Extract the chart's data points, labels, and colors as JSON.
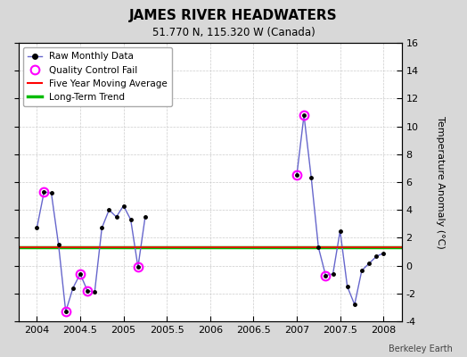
{
  "title": "JAMES RIVER HEADWATERS",
  "subtitle": "51.770 N, 115.320 W (Canada)",
  "ylabel_right": "Temperature Anomaly (°C)",
  "watermark": "Berkeley Earth",
  "background_color": "#d8d8d8",
  "plot_bg_color": "#ffffff",
  "xlim": [
    2003.79,
    2008.21
  ],
  "ylim": [
    -4,
    16
  ],
  "yticks": [
    -4,
    -2,
    0,
    2,
    4,
    6,
    8,
    10,
    12,
    14,
    16
  ],
  "xticks": [
    2004,
    2004.5,
    2005,
    2005.5,
    2006,
    2006.5,
    2007,
    2007.5,
    2008
  ],
  "xtick_labels": [
    "2004",
    "2004.5",
    "2005",
    "2005.5",
    "2006",
    "2006.5",
    "2007",
    "2007.5",
    "2008"
  ],
  "long_term_trend_y": 1.3,
  "five_year_avg_y": 1.3,
  "raw_data_segments": [
    {
      "x": [
        2004.0,
        2004.083,
        2004.167,
        2004.25,
        2004.333,
        2004.417,
        2004.5,
        2004.583,
        2004.667,
        2004.75,
        2004.833,
        2004.917,
        2005.0,
        2005.083,
        2005.167,
        2005.25
      ],
      "y": [
        2.7,
        5.3,
        5.2,
        1.5,
        -3.3,
        -1.6,
        -0.6,
        -1.8,
        -1.9,
        2.7,
        4.0,
        3.5,
        4.3,
        3.3,
        -0.1,
        3.5
      ]
    },
    {
      "x": [
        2007.0,
        2007.083,
        2007.167,
        2007.25,
        2007.333,
        2007.417,
        2007.5,
        2007.583,
        2007.667,
        2007.75,
        2007.833,
        2007.917,
        2008.0
      ],
      "y": [
        6.5,
        10.8,
        6.3,
        1.3,
        -0.7,
        -0.6,
        2.5,
        -1.5,
        -2.8,
        -0.35,
        0.15,
        0.65,
        0.9
      ]
    }
  ],
  "qc_fail_points": {
    "x": [
      2004.083,
      2004.333,
      2004.5,
      2004.583,
      2005.167,
      2007.0,
      2007.083,
      2007.333
    ],
    "y": [
      5.3,
      -3.3,
      -0.6,
      -1.8,
      -0.1,
      6.5,
      10.8,
      -0.7
    ]
  },
  "line_color": "#6666cc",
  "marker_color": "#000000",
  "qc_color": "#ff00ff",
  "five_year_color": "#ff0000",
  "trend_color": "#00bb00",
  "grid_color": "#cccccc",
  "grid_linestyle": "--"
}
